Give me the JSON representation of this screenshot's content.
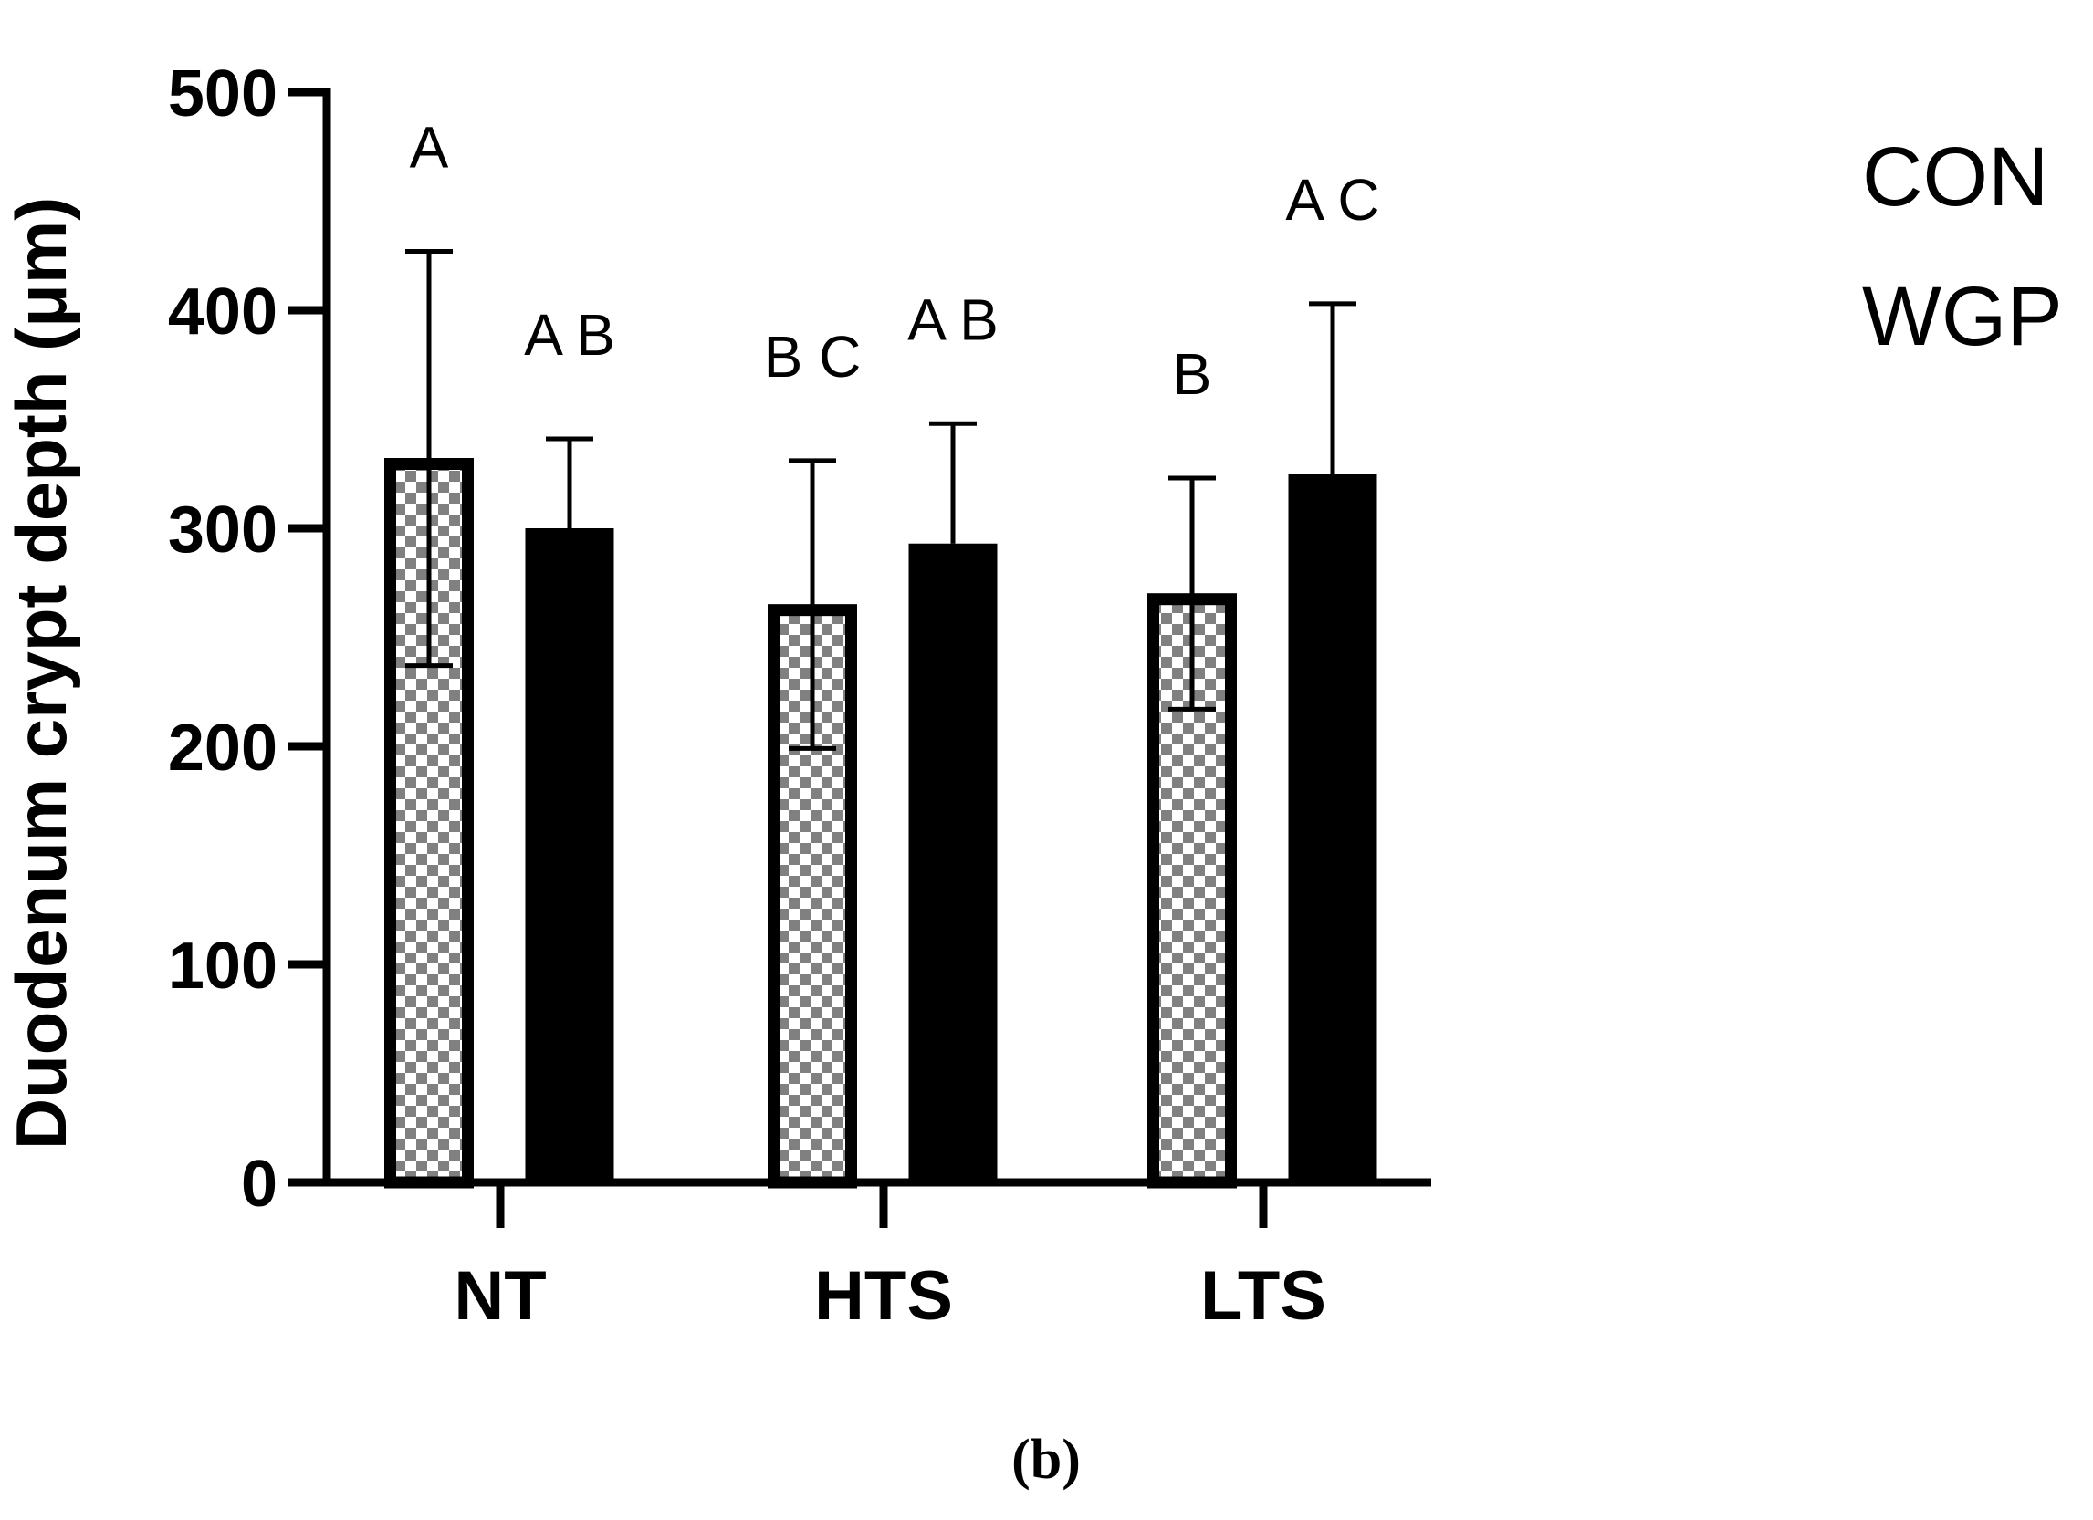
{
  "chart_data": {
    "type": "bar",
    "ylabel": "Duodenum crypt depth (μm)",
    "ylim": [
      0,
      500
    ],
    "yticks": [
      "0",
      "100",
      "200",
      "300",
      "400",
      "500"
    ],
    "categories": [
      "NT",
      "HTS",
      "LTS"
    ],
    "series": [
      {
        "name": "CON",
        "pattern": "checkered",
        "fill_color": "#808080",
        "values": [
          332,
          265,
          270
        ],
        "error": [
          95,
          66,
          53
        ],
        "sig_letters": [
          "A",
          "B C",
          "B"
        ]
      },
      {
        "name": "WGP",
        "pattern": "solid",
        "fill_color": "#000000",
        "values": [
          300,
          293,
          325
        ],
        "error": [
          41,
          55,
          78
        ],
        "sig_letters": [
          "A B",
          "A B",
          "A C"
        ]
      }
    ],
    "legend_position": "top-right",
    "grid": false
  },
  "caption": "(b)"
}
